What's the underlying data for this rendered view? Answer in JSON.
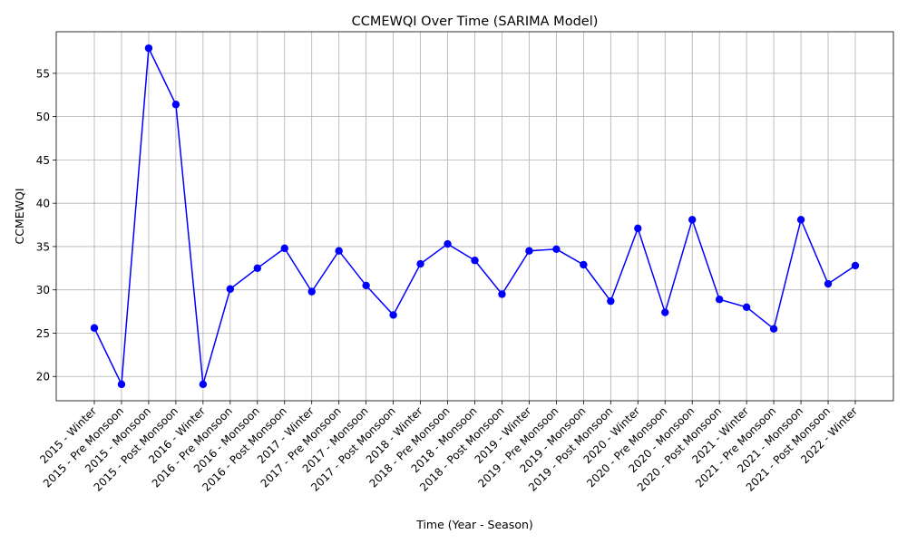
{
  "chart_data": {
    "type": "line",
    "title": "CCMEWQI Over Time (SARIMA Model)",
    "xlabel": "Time (Year - Season)",
    "ylabel": "CCMEWQI",
    "categories": [
      "2015 - Winter",
      "2015 - Pre Monsoon",
      "2015 - Monsoon",
      "2015 - Post Monsoon",
      "2016 - Winter",
      "2016 - Pre Monsoon",
      "2016 - Monsoon",
      "2016 - Post Monsoon",
      "2017 - Winter",
      "2017 - Pre Monsoon",
      "2017 - Monsoon",
      "2017 - Post Monsoon",
      "2018 - Winter",
      "2018 - Pre Monsoon",
      "2018 - Monsoon",
      "2018 - Post Monsoon",
      "2019 - Winter",
      "2019 - Pre Monsoon",
      "2019 - Monsoon",
      "2019 - Post Monsoon",
      "2020 - Winter",
      "2020 - Pre Monsoon",
      "2020 - Monsoon",
      "2020 - Post Monsoon",
      "2021 - Winter",
      "2021 - Pre Monsoon",
      "2021 - Monsoon",
      "2021 - Post Monsoon",
      "2022 - Winter"
    ],
    "series": [
      {
        "values": [
          25.6,
          19.1,
          57.9,
          51.4,
          19.1,
          30.1,
          32.5,
          34.8,
          29.8,
          34.5,
          30.5,
          27.1,
          33.0,
          35.3,
          33.4,
          29.5,
          34.5,
          34.7,
          32.9,
          28.7,
          37.1,
          27.4,
          38.1,
          28.9,
          28.0,
          25.5,
          38.1,
          30.7,
          32.8
        ],
        "color": "#0000ff",
        "marker": "circle"
      }
    ],
    "yticks": [
      20,
      25,
      30,
      35,
      40,
      45,
      50,
      55
    ],
    "ylim": [
      17.2,
      59.8
    ],
    "grid": true,
    "legend": "none"
  }
}
